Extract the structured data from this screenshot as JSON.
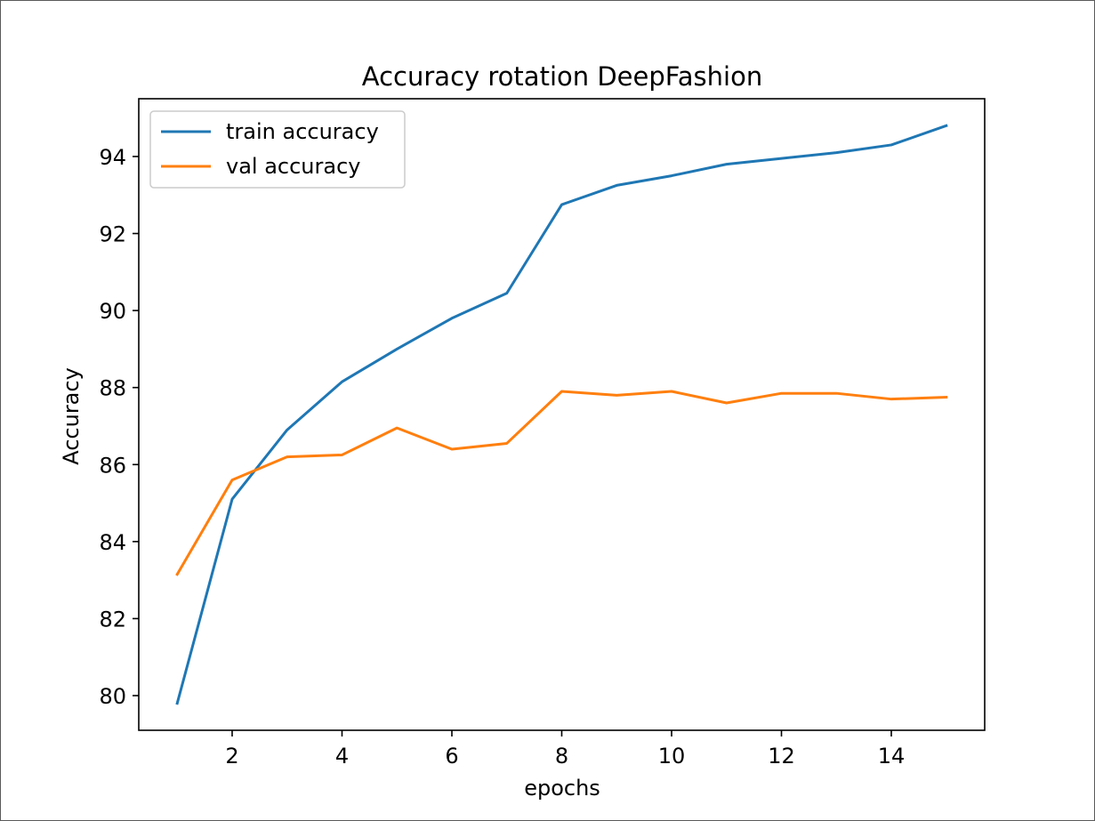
{
  "chart_data": {
    "type": "line",
    "title": "Accuracy rotation DeepFashion",
    "xlabel": "epochs",
    "ylabel": "Accuracy",
    "x": [
      1,
      2,
      3,
      4,
      5,
      6,
      7,
      8,
      9,
      10,
      11,
      12,
      13,
      14,
      15
    ],
    "xlim": [
      0.3,
      15.7
    ],
    "ylim": [
      79.1,
      95.5
    ],
    "xticks": [
      2,
      4,
      6,
      8,
      10,
      12,
      14
    ],
    "yticks": [
      80,
      82,
      84,
      86,
      88,
      90,
      92,
      94
    ],
    "grid": false,
    "legend_position": "upper-left",
    "series": [
      {
        "name": "train accuracy",
        "color": "#1f77b4",
        "values": [
          79.8,
          85.1,
          86.9,
          88.15,
          89.0,
          89.8,
          90.45,
          92.75,
          93.25,
          93.5,
          93.8,
          93.95,
          94.1,
          94.3,
          94.8
        ]
      },
      {
        "name": "val accuracy",
        "color": "#ff7f0e",
        "values": [
          83.15,
          85.6,
          86.2,
          86.25,
          86.95,
          86.4,
          86.55,
          87.9,
          87.8,
          87.9,
          87.6,
          87.85,
          87.85,
          87.7,
          87.75
        ]
      }
    ]
  }
}
